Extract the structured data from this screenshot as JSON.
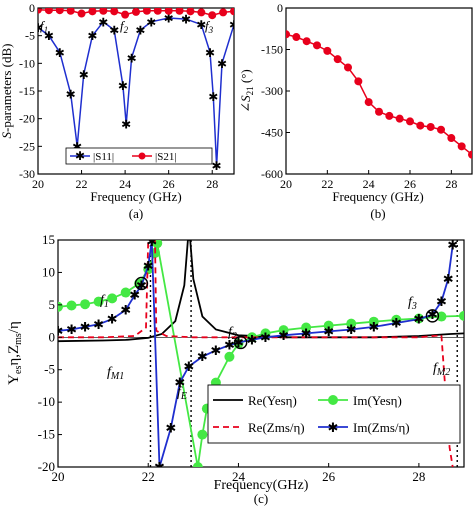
{
  "chart_data": [
    {
      "panel": "(a)",
      "type": "line",
      "xlabel": "Frequency (GHz)",
      "ylabel": "S-parameters (dB)",
      "xlim": [
        20,
        29
      ],
      "ylim": [
        -30,
        0
      ],
      "xticks": [
        20,
        22,
        24,
        26,
        28
      ],
      "yticks": [
        0,
        -5,
        -10,
        -15,
        -20,
        -25,
        -30
      ],
      "annotations": [
        "f1",
        "f2",
        "f3"
      ],
      "legend_placement": "bottom",
      "series": [
        {
          "name": "|S11|",
          "color": "#1f2fcf",
          "marker": "asterisk",
          "points": [
            [
              20,
              -3.5
            ],
            [
              20.5,
              -5
            ],
            [
              21,
              -8
            ],
            [
              21.5,
              -15.5
            ],
            [
              21.8,
              -25
            ],
            [
              22.1,
              -12
            ],
            [
              22.5,
              -5
            ],
            [
              23,
              -2.5
            ],
            [
              23.5,
              -4
            ],
            [
              23.9,
              -14
            ],
            [
              24.05,
              -21
            ],
            [
              24.3,
              -9
            ],
            [
              24.7,
              -4
            ],
            [
              25.2,
              -2.5
            ],
            [
              26,
              -1.8
            ],
            [
              26.8,
              -2
            ],
            [
              27.5,
              -3
            ],
            [
              27.9,
              -8
            ],
            [
              28.05,
              -16
            ],
            [
              28.2,
              -28.5
            ],
            [
              28.45,
              -10
            ],
            [
              29,
              -3
            ]
          ]
        },
        {
          "name": "|S21|",
          "color": "#e8001c",
          "marker": "circle",
          "points": [
            [
              20,
              -0.3
            ],
            [
              20.5,
              -0.4
            ],
            [
              21,
              -0.4
            ],
            [
              21.5,
              -0.5
            ],
            [
              22,
              -1
            ],
            [
              22.5,
              -0.6
            ],
            [
              23,
              -0.5
            ],
            [
              23.5,
              -0.6
            ],
            [
              24,
              -1.2
            ],
            [
              24.5,
              -0.7
            ],
            [
              25,
              -0.5
            ],
            [
              25.5,
              -0.5
            ],
            [
              26,
              -0.5
            ],
            [
              26.5,
              -0.5
            ],
            [
              27,
              -0.6
            ],
            [
              27.5,
              -0.8
            ],
            [
              28,
              -1.3
            ],
            [
              28.5,
              -0.8
            ],
            [
              29,
              -0.6
            ]
          ]
        }
      ]
    },
    {
      "panel": "(b)",
      "type": "line",
      "xlabel": "Frequency (GHz)",
      "ylabel": "∠S21 (°)",
      "xlim": [
        20,
        29
      ],
      "ylim": [
        -600,
        0
      ],
      "xticks": [
        20,
        22,
        24,
        26,
        28
      ],
      "yticks": [
        0,
        -150,
        -300,
        -450,
        -600
      ],
      "series": [
        {
          "color": "#e8001c",
          "marker": "circle",
          "points": [
            [
              20,
              -95
            ],
            [
              20.5,
              -105
            ],
            [
              21,
              -120
            ],
            [
              21.5,
              -135
            ],
            [
              22,
              -155
            ],
            [
              22.5,
              -185
            ],
            [
              23,
              -215
            ],
            [
              23.5,
              -265
            ],
            [
              24,
              -340
            ],
            [
              24.5,
              -375
            ],
            [
              25,
              -390
            ],
            [
              25.5,
              -400
            ],
            [
              26,
              -410
            ],
            [
              26.5,
              -425
            ],
            [
              27,
              -430
            ],
            [
              27.5,
              -440
            ],
            [
              28,
              -470
            ],
            [
              28.5,
              -500
            ],
            [
              29,
              -530
            ]
          ]
        }
      ]
    },
    {
      "panel": "(c)",
      "type": "line",
      "xlabel": "Frequency(GHz)",
      "ylabel": "Yesη,Zms/η",
      "xlim": [
        20,
        29
      ],
      "ylim": [
        -20,
        15
      ],
      "xticks": [
        20,
        22,
        24,
        26,
        28
      ],
      "yticks": [
        15,
        10,
        5,
        0,
        -5,
        -10,
        -15,
        -20
      ],
      "annotations": [
        "f1",
        "f2",
        "f3",
        "fM1",
        "fE",
        "fM2"
      ],
      "legend_placement": "bottom-right",
      "series": [
        {
          "name": "Re(Yesη)",
          "color": "#000000",
          "style": "solid",
          "points": [
            [
              20,
              -0.6
            ],
            [
              21,
              -0.5
            ],
            [
              21.5,
              -0.4
            ],
            [
              22,
              -0.1
            ],
            [
              22.3,
              0.5
            ],
            [
              22.6,
              2.5
            ],
            [
              22.8,
              8
            ],
            [
              22.88,
              15
            ],
            [
              22.93,
              15
            ],
            [
              23.0,
              9
            ],
            [
              23.2,
              3.2
            ],
            [
              23.5,
              1.2
            ],
            [
              24,
              0.3
            ],
            [
              25,
              0
            ],
            [
              26,
              0
            ],
            [
              27,
              0
            ],
            [
              28,
              0.2
            ],
            [
              28.7,
              0.5
            ],
            [
              29,
              0.6
            ]
          ]
        },
        {
          "name": "Im(Yesη)",
          "color": "#44e844",
          "style": "solid",
          "marker": "circle",
          "points": [
            [
              20,
              4.7
            ],
            [
              20.3,
              4.9
            ],
            [
              20.6,
              5.1
            ],
            [
              20.9,
              5.5
            ],
            [
              21.2,
              6
            ],
            [
              21.5,
              6.9
            ],
            [
              21.8,
              8.3
            ],
            [
              22.0,
              10.5
            ],
            [
              22.15,
              13
            ],
            [
              22.2,
              14.5
            ],
            [
              23.1,
              -20
            ],
            [
              23.2,
              -15
            ],
            [
              23.3,
              -11
            ],
            [
              23.5,
              -7
            ],
            [
              23.8,
              -3
            ],
            [
              24,
              -1
            ],
            [
              24.3,
              0
            ],
            [
              24.6,
              0.6
            ],
            [
              25,
              1.1
            ],
            [
              25.5,
              1.5
            ],
            [
              26,
              1.8
            ],
            [
              26.5,
              2.1
            ],
            [
              27,
              2.4
            ],
            [
              27.5,
              2.7
            ],
            [
              28,
              2.9
            ],
            [
              28.5,
              3.2
            ],
            [
              29,
              3.3
            ]
          ]
        },
        {
          "name": "Re(Zms/η)",
          "color": "#e8001c",
          "style": "dashed",
          "points": [
            [
              20,
              0
            ],
            [
              21,
              0
            ],
            [
              21.7,
              0.2
            ],
            [
              21.95,
              1.5
            ],
            [
              22.0,
              14.8
            ],
            [
              22.15,
              14.8
            ],
            [
              22.18,
              1
            ],
            [
              22.4,
              0.2
            ],
            [
              23,
              0
            ],
            [
              25,
              0
            ],
            [
              27,
              0
            ],
            [
              28,
              0
            ],
            [
              28.5,
              0.3
            ],
            [
              28.68,
              -17
            ],
            [
              28.75,
              -20
            ]
          ]
        },
        {
          "name": "Im(Zms/η)",
          "color": "#1f2fcf",
          "style": "solid",
          "marker": "asterisk",
          "points": [
            [
              20,
              1
            ],
            [
              20.3,
              1.2
            ],
            [
              20.6,
              1.6
            ],
            [
              20.9,
              2
            ],
            [
              21.2,
              2.8
            ],
            [
              21.5,
              4.2
            ],
            [
              21.7,
              6.5
            ],
            [
              21.85,
              8
            ],
            [
              22.0,
              11
            ],
            [
              22.08,
              14.8
            ],
            [
              22.25,
              -20
            ],
            [
              22.5,
              -14
            ],
            [
              22.7,
              -7
            ],
            [
              22.9,
              -4.5
            ],
            [
              23.2,
              -3
            ],
            [
              23.5,
              -2
            ],
            [
              23.8,
              -1.2
            ],
            [
              24,
              -0.8
            ],
            [
              24.3,
              -0.4
            ],
            [
              24.6,
              0
            ],
            [
              25,
              0.3
            ],
            [
              25.5,
              0.6
            ],
            [
              26,
              0.9
            ],
            [
              26.5,
              1.2
            ],
            [
              27,
              1.6
            ],
            [
              27.5,
              2.2
            ],
            [
              28,
              2.8
            ],
            [
              28.3,
              3.5
            ],
            [
              28.5,
              5.5
            ],
            [
              28.65,
              9
            ],
            [
              28.75,
              14.2
            ]
          ]
        }
      ]
    }
  ],
  "labels": {
    "panel_a": "(a)",
    "panel_b": "(b)",
    "panel_c": "(c)",
    "f1": "f",
    "f1_sub": "1",
    "f2": "f",
    "f2_sub": "2",
    "f3": "f",
    "f3_sub": "3",
    "fM1": "f",
    "fM1_sub": "M1",
    "fE": "f",
    "fE_sub": "E",
    "fM2": "f",
    "fM2_sub": "M2"
  }
}
